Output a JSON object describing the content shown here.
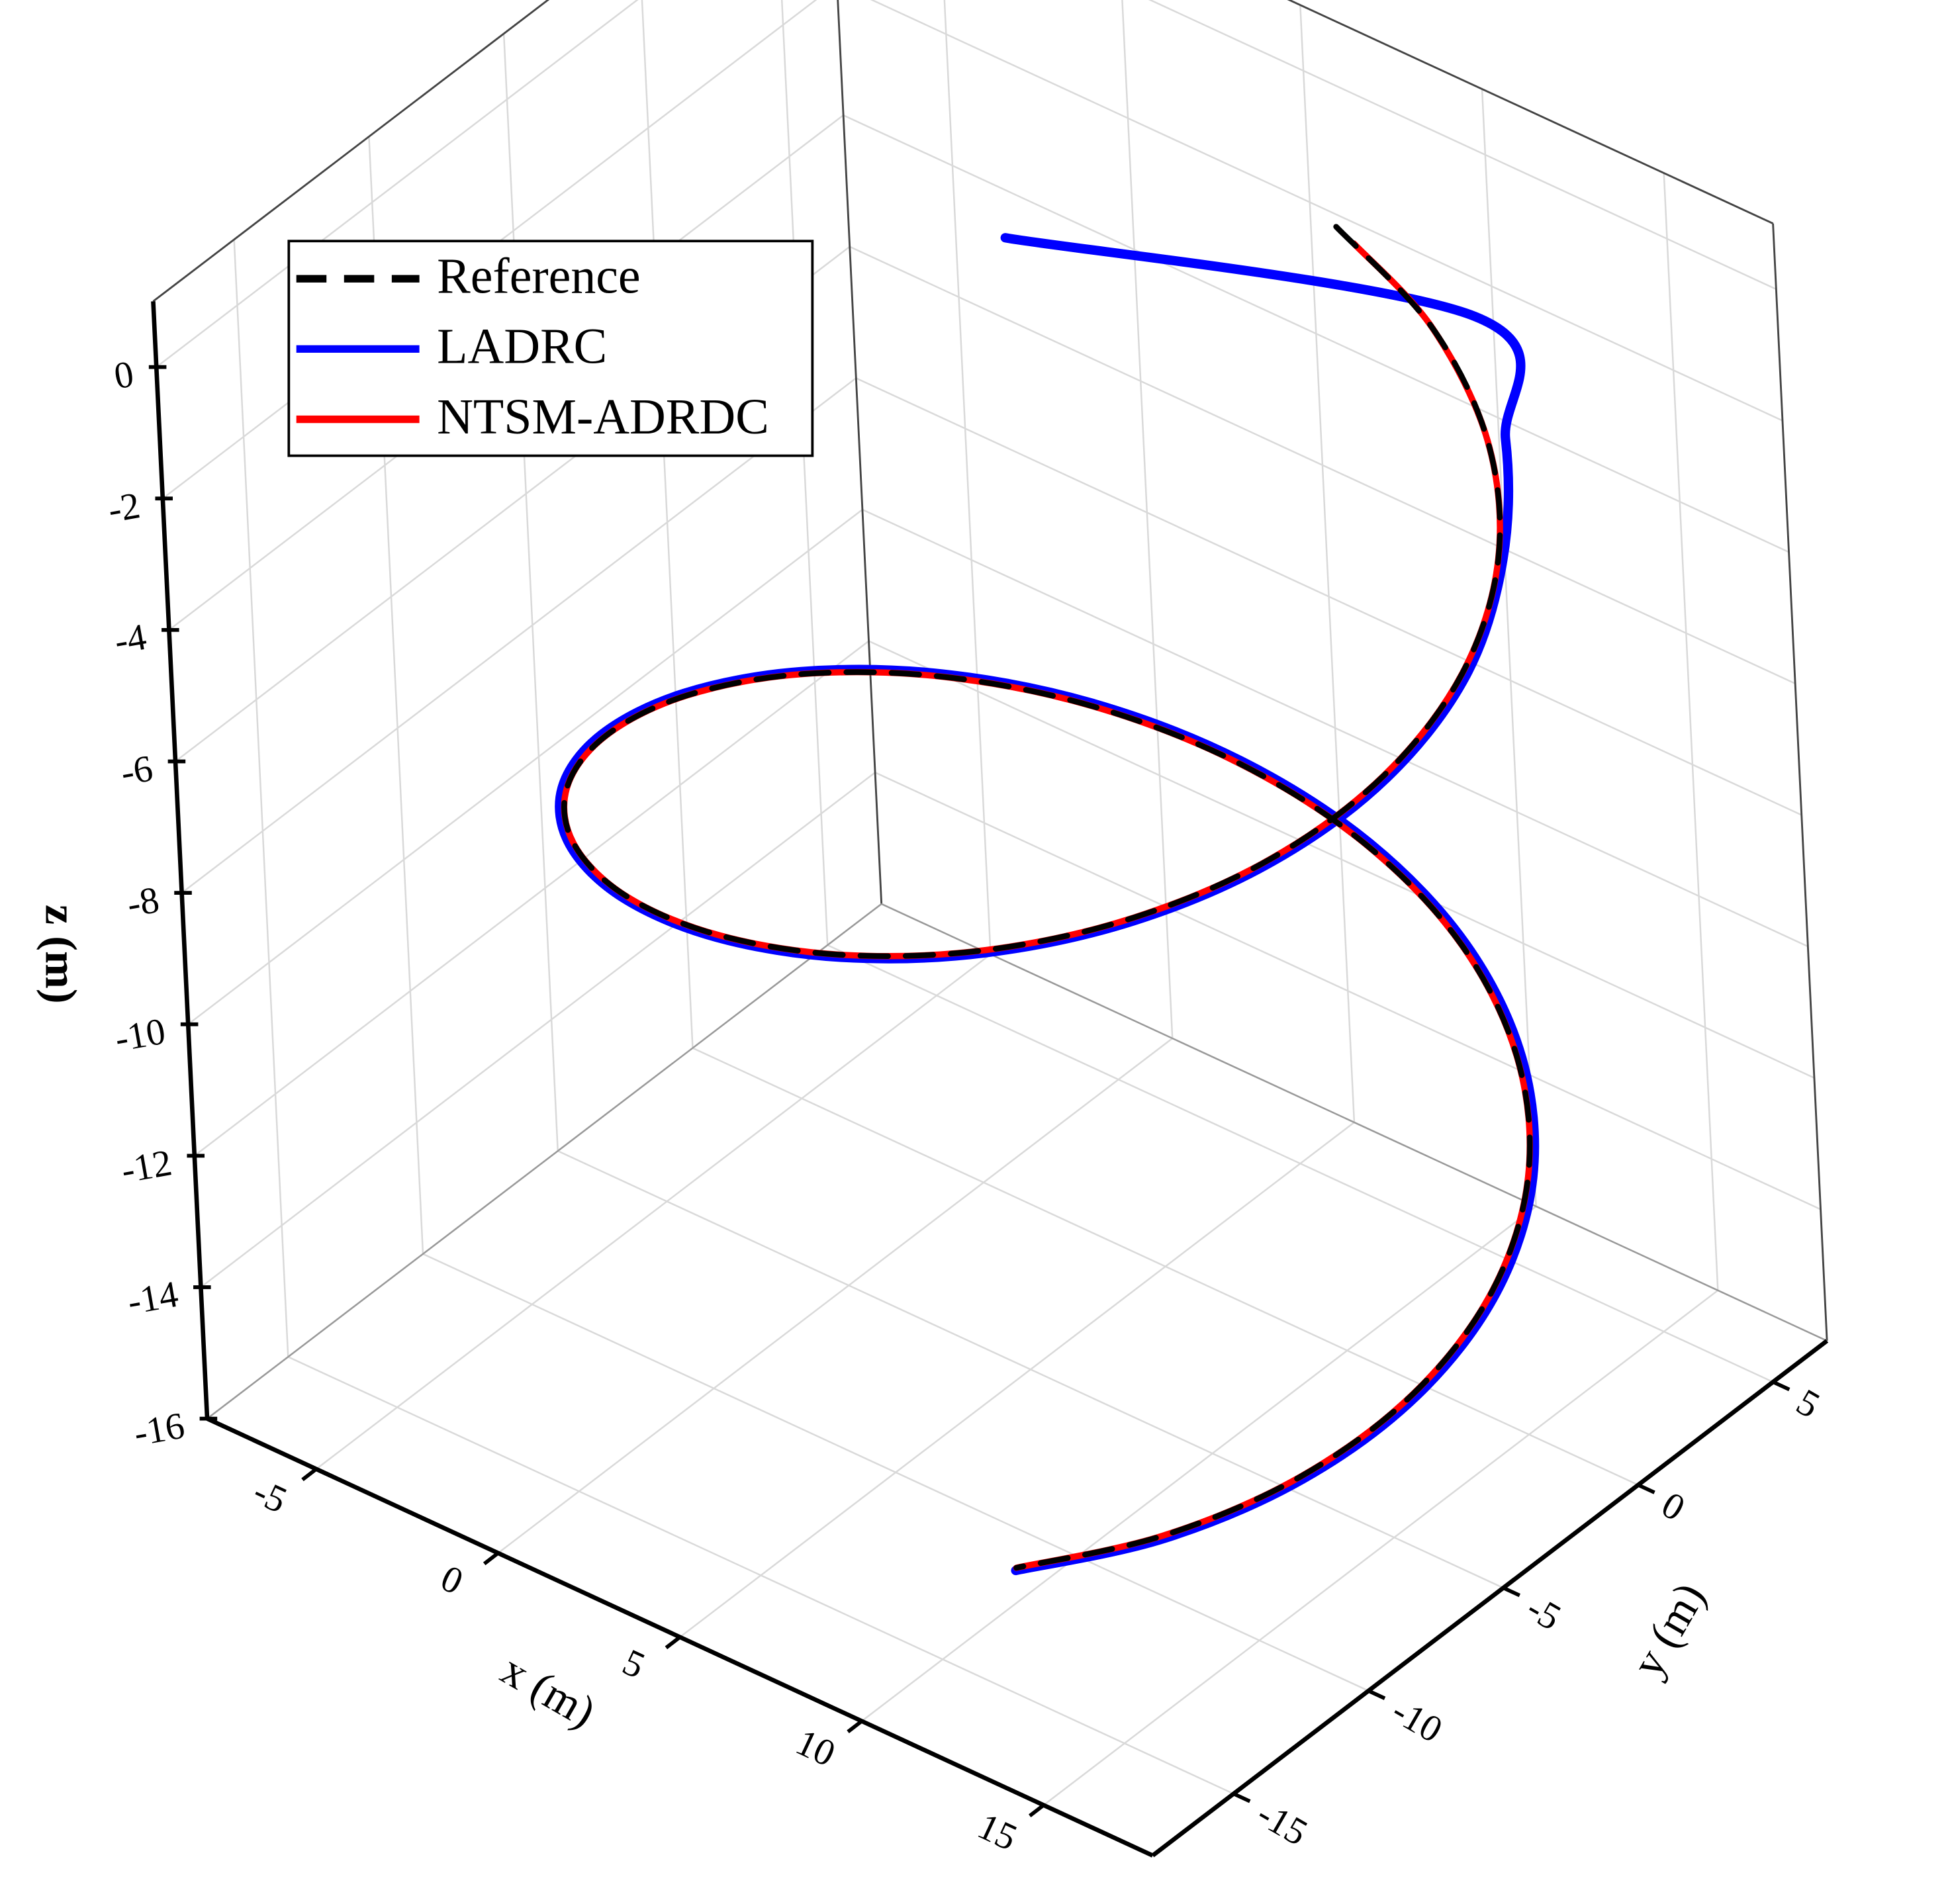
{
  "chart_data": {
    "type": "line3d",
    "xlabel": "x (m)",
    "ylabel": "y (m)",
    "zlabel": "z (m)",
    "xlim": [
      -8,
      18
    ],
    "ylim": [
      -18,
      7
    ],
    "zlim": [
      -16,
      1
    ],
    "xticks": [
      -5,
      0,
      5,
      10,
      15
    ],
    "yticks": [
      -15,
      -10,
      -5,
      0,
      5
    ],
    "zticks": [
      -16,
      -14,
      -12,
      -10,
      -8,
      -6,
      -4,
      -2,
      0
    ],
    "grid": true,
    "legend": "upper left",
    "series": [
      {
        "name": "Reference",
        "color": "#000000",
        "linestyle": "dashed",
        "x": [
          6.92,
          10.1,
          12.89,
          15.0,
          16.23,
          16.46,
          15.67,
          13.92,
          11.41,
          8.36,
          5.08,
          1.9,
          -0.89,
          -3.0,
          -4.23,
          -4.46,
          -3.67,
          -1.92,
          0.59,
          3.64,
          6.92,
          10.1,
          12.89,
          15.0,
          16.23,
          16.46,
          15.67,
          13.92,
          11.41
        ],
        "y": [
          5.46,
          4.67,
          2.92,
          0.41,
          -2.64,
          -5.92,
          -9.1,
          -11.89,
          -14.0,
          -15.23,
          -15.46,
          -14.67,
          -12.92,
          -10.41,
          -7.36,
          -4.08,
          -0.9,
          1.89,
          4.0,
          5.23,
          5.46,
          4.67,
          2.92,
          0.41,
          -2.64,
          -5.92,
          -9.1,
          -11.89,
          -14.0
        ],
        "z": [
          -1.4,
          -1.87,
          -2.34,
          -2.81,
          -3.28,
          -3.75,
          -4.22,
          -4.69,
          -5.16,
          -5.63,
          -6.1,
          -6.57,
          -7.04,
          -7.51,
          -7.98,
          -8.45,
          -8.92,
          -9.39,
          -9.86,
          -10.33,
          -10.8,
          -11.27,
          -11.74,
          -12.21,
          -12.68,
          -13.15,
          -13.62,
          -14.09,
          -14.56
        ]
      },
      {
        "name": "LADRC",
        "color": "#0000ff",
        "linestyle": "solid",
        "x": [
          1.5,
          10.6,
          13.15,
          15.09,
          16.33,
          16.56,
          15.76,
          14.0,
          11.46,
          8.38,
          5.07,
          1.86,
          -0.96,
          -3.09,
          -4.33,
          -4.56,
          -3.76,
          -2.0,
          0.54,
          3.62,
          6.93,
          10.14,
          12.95,
          15.09,
          16.33,
          16.56,
          15.76,
          14.0,
          11.46
        ],
        "y": [
          0.5,
          5.6,
          3.23,
          0.46,
          -2.62,
          -5.93,
          -9.14,
          -11.96,
          -14.09,
          -15.33,
          -15.56,
          -14.76,
          -12.99,
          -10.46,
          -7.38,
          -4.07,
          -0.86,
          1.96,
          4.09,
          5.33,
          5.56,
          4.76,
          3.0,
          0.46,
          -2.62,
          -5.93,
          -9.14,
          -11.96,
          -14.09
        ],
        "z": [
          -1.4,
          -1.87,
          -2.34,
          -2.81,
          -3.28,
          -3.75,
          -4.22,
          -4.69,
          -5.16,
          -5.63,
          -6.1,
          -6.57,
          -7.04,
          -7.51,
          -7.98,
          -8.45,
          -8.92,
          -9.39,
          -9.86,
          -10.33,
          -10.8,
          -11.27,
          -11.74,
          -12.21,
          -12.68,
          -13.15,
          -13.62,
          -14.09,
          -14.56
        ]
      },
      {
        "name": "NTSM-ADRDC",
        "color": "#ff0000",
        "linestyle": "solid",
        "x": [
          7.6,
          10.1,
          12.89,
          15.0,
          16.23,
          16.46,
          15.67,
          13.92,
          11.41,
          8.36,
          5.08,
          1.9,
          -0.89,
          -3.0,
          -4.23,
          -4.46,
          -3.67,
          -1.92,
          0.59,
          3.64,
          6.92,
          10.1,
          12.89,
          15.0,
          16.23,
          16.46,
          15.67,
          13.92,
          11.41
        ],
        "y": [
          5.2,
          4.67,
          2.92,
          0.41,
          -2.64,
          -5.92,
          -9.1,
          -11.89,
          -14.0,
          -15.23,
          -15.46,
          -14.67,
          -12.92,
          -10.41,
          -7.36,
          -4.08,
          -0.9,
          1.89,
          4.0,
          5.23,
          5.46,
          4.67,
          2.92,
          0.41,
          -2.64,
          -5.92,
          -9.1,
          -11.89,
          -14.0
        ],
        "z": [
          -1.4,
          -1.87,
          -2.34,
          -2.81,
          -3.28,
          -3.75,
          -4.22,
          -4.69,
          -5.16,
          -5.63,
          -6.1,
          -6.57,
          -7.04,
          -7.51,
          -7.98,
          -8.45,
          -8.92,
          -9.39,
          -9.86,
          -10.33,
          -10.8,
          -11.27,
          -11.74,
          -12.21,
          -12.68,
          -13.15,
          -13.62,
          -14.09,
          -14.56
        ]
      }
    ]
  }
}
